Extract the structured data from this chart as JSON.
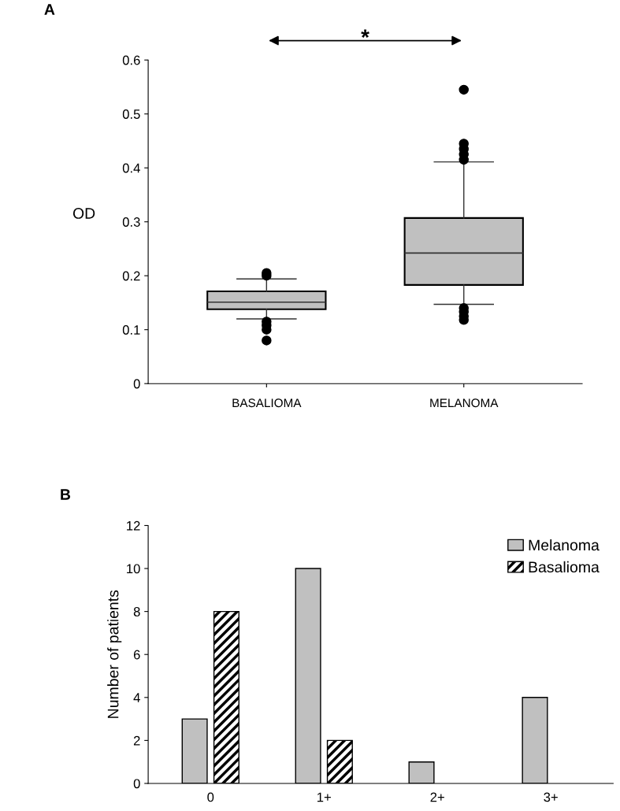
{
  "chart_data": [
    {
      "type": "box",
      "ylabel": "OD",
      "categories": [
        "BASALIOMA",
        "MELANOMA"
      ],
      "color": "#c0c0c0",
      "ylim": [
        0,
        0.6
      ],
      "yticks": [
        0,
        0.1,
        0.2,
        0.3,
        0.4,
        0.5,
        0.6
      ],
      "grid": false,
      "boxes": [
        {
          "low": 0.12,
          "q1": 0.138,
          "median": 0.151,
          "q3": 0.171,
          "high": 0.194,
          "outliers": [
            0.205,
            0.2,
            0.115,
            0.108,
            0.1,
            0.08
          ]
        },
        {
          "low": 0.147,
          "q1": 0.183,
          "median": 0.242,
          "q3": 0.307,
          "high": 0.411,
          "outliers": [
            0.545,
            0.445,
            0.435,
            0.425,
            0.415,
            0.14,
            0.133,
            0.125,
            0.118
          ]
        }
      ],
      "annotations": [
        "A",
        "*"
      ]
    },
    {
      "type": "bar",
      "ylabel": "Number of patients",
      "categories": [
        "0",
        "1+",
        "2+",
        "3+"
      ],
      "ylim": [
        0,
        12
      ],
      "yticks": [
        0,
        2,
        4,
        6,
        8,
        10,
        12
      ],
      "grid": false,
      "legend": "top right",
      "series": [
        {
          "name": "Melanoma",
          "color": "#c0c0c0",
          "values": [
            3,
            10,
            1,
            4
          ]
        },
        {
          "name": "Basalioma",
          "color": "#000000",
          "values": [
            8,
            2,
            0,
            0
          ]
        }
      ],
      "annotations": [
        "B"
      ]
    }
  ]
}
